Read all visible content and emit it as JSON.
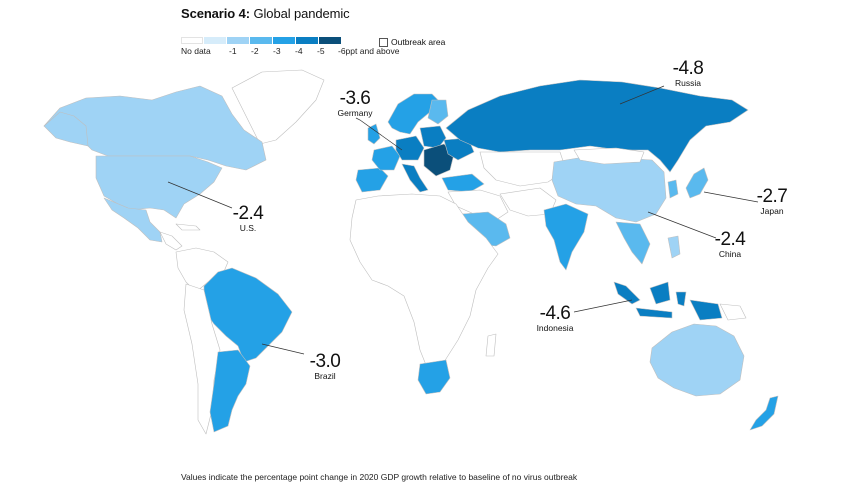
{
  "title": {
    "bold": "Scenario 4:",
    "rest": " Global pandemic"
  },
  "legend": {
    "items": [
      {
        "label": "No data",
        "color": "#ffffff"
      },
      {
        "label": "-1",
        "color": "#d6ecfa"
      },
      {
        "label": "-2",
        "color": "#9fd3f5"
      },
      {
        "label": "-3",
        "color": "#5ab9ee"
      },
      {
        "label": "-4",
        "color": "#24a1e6"
      },
      {
        "label": "-5",
        "color": "#0a7ec2"
      },
      {
        "label": "-6ppt and above",
        "color": "#0b4f7a"
      }
    ],
    "outbreak_label": "Outbreak area"
  },
  "callouts": [
    {
      "country": "Russia",
      "value": "-4.8"
    },
    {
      "country": "Germany",
      "value": "-3.6"
    },
    {
      "country": "U.S.",
      "value": "-2.4"
    },
    {
      "country": "Japan",
      "value": "-2.7"
    },
    {
      "country": "China",
      "value": "-2.4"
    },
    {
      "country": "Indonesia",
      "value": "-4.6"
    },
    {
      "country": "Brazil",
      "value": "-3.0"
    }
  ],
  "footnote": "Values indicate the percentage point change in 2020 GDP growth relative to baseline of no virus outbreak",
  "colors": {
    "border": "#bfbfbf",
    "leader": "#333333"
  }
}
